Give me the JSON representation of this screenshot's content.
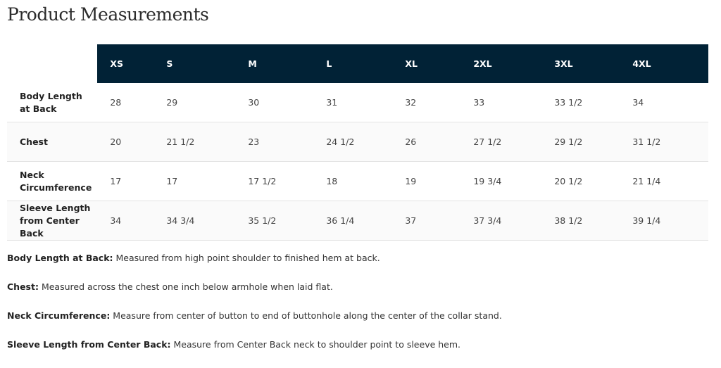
{
  "title": "Product Measurements",
  "colors": {
    "header_bg": "#012236",
    "header_text": "#ffffff",
    "alt_row_bg": "#fafafa"
  },
  "table": {
    "sizes": [
      "XS",
      "S",
      "M",
      "L",
      "XL",
      "2XL",
      "3XL",
      "4XL"
    ],
    "rows": [
      {
        "label": "Body Length at Back",
        "values": [
          "28",
          "29",
          "30",
          "31",
          "32",
          "33",
          "33 1/2",
          "34"
        ]
      },
      {
        "label": "Chest",
        "values": [
          "20",
          "21 1/2",
          "23",
          "24 1/2",
          "26",
          "27 1/2",
          "29 1/2",
          "31 1/2"
        ]
      },
      {
        "label": "Neck Circumference",
        "values": [
          "17",
          "17",
          "17 1/2",
          "18",
          "19",
          "19 3/4",
          "20 1/2",
          "21 1/4"
        ]
      },
      {
        "label": "Sleeve Length from Center Back",
        "values": [
          "34",
          "34 3/4",
          "35 1/2",
          "36 1/4",
          "37",
          "37 3/4",
          "38 1/2",
          "39 1/4"
        ]
      }
    ]
  },
  "notes": [
    {
      "term": "Body Length at Back:",
      "text": " Measured from high point shoulder to finished hem at back."
    },
    {
      "term": "Chest:",
      "text": " Measured across the chest one inch below armhole when laid flat."
    },
    {
      "term": "Neck Circumference:",
      "text": " Measure from center of button to end of buttonhole along the center of the collar stand."
    },
    {
      "term": "Sleeve Length from Center Back:",
      "text": " Measure from Center Back neck to shoulder point to sleeve hem."
    }
  ]
}
